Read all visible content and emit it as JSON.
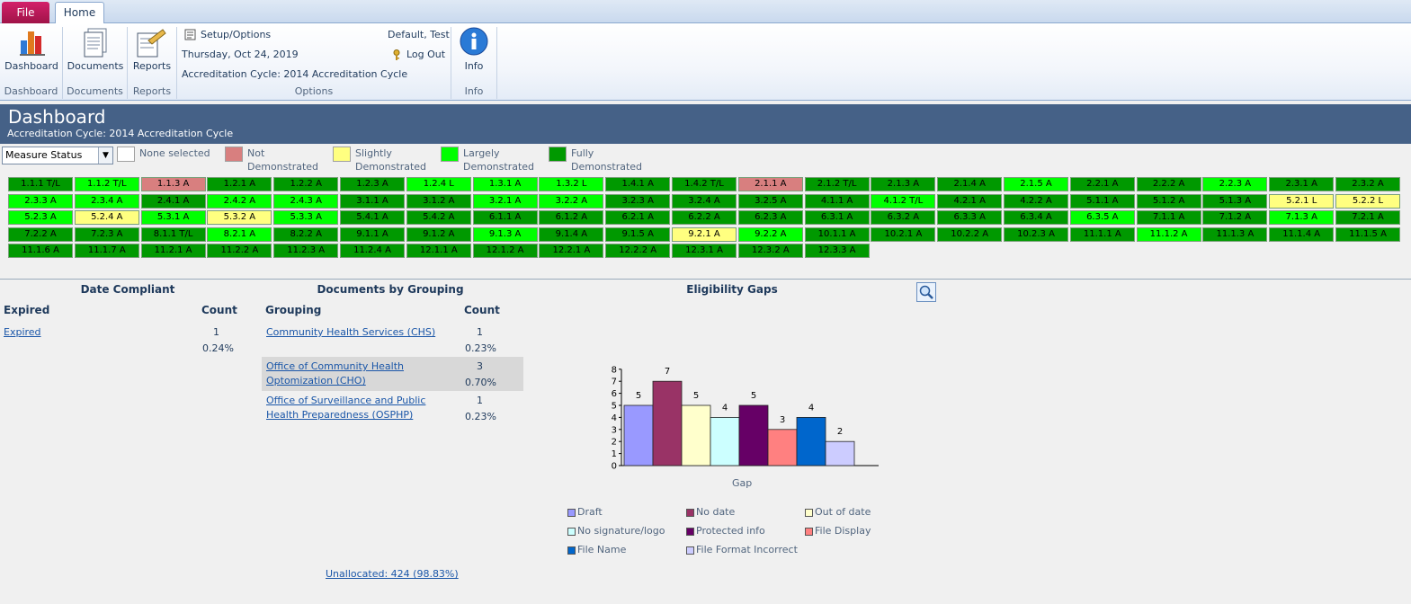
{
  "tabs": {
    "file": "File",
    "home": "Home"
  },
  "ribbon": {
    "dashboard": {
      "label": "Dashboard",
      "group": "Dashboard"
    },
    "documents": {
      "label": "Documents",
      "group": "Documents"
    },
    "reports": {
      "label": "Reports",
      "group": "Reports"
    },
    "options": {
      "setup": "Setup/Options",
      "date": "Thursday, Oct 24, 2019",
      "cycle": "Accreditation Cycle: 2014 Accreditation Cycle",
      "user": "Default, Test",
      "logout": "Log Out",
      "group": "Options"
    },
    "info": {
      "label": "Info",
      "group": "Info"
    }
  },
  "dashboard": {
    "title": "Dashboard",
    "subtitle": "Accreditation Cycle: 2014 Accreditation Cycle"
  },
  "filter": {
    "select_value": "Measure Status",
    "legend": [
      {
        "label_lines": [
          "None selected"
        ],
        "color": "#ffffff"
      },
      {
        "label_lines": [
          "Not",
          "Demonstrated"
        ],
        "color": "#d87f7f"
      },
      {
        "label_lines": [
          "Slightly",
          "Demonstrated"
        ],
        "color": "#ffff80"
      },
      {
        "label_lines": [
          "Largely",
          "Demonstrated"
        ],
        "color": "#00ff00"
      },
      {
        "label_lines": [
          "Fully",
          "Demonstrated"
        ],
        "color": "#009900"
      }
    ]
  },
  "status_colors": {
    "N": "#d87f7f",
    "S": "#ffff80",
    "L": "#00ff00",
    "F": "#009900"
  },
  "measures": [
    [
      [
        "1.1.1 T/L",
        "F"
      ],
      [
        "1.1.2 T/L",
        "L"
      ],
      [
        "1.1.3 A",
        "N"
      ],
      [
        "1.2.1 A",
        "F"
      ],
      [
        "1.2.2 A",
        "F"
      ],
      [
        "1.2.3 A",
        "F"
      ],
      [
        "1.2.4 L",
        "L"
      ],
      [
        "1.3.1 A",
        "L"
      ],
      [
        "1.3.2 L",
        "L"
      ],
      [
        "1.4.1 A",
        "F"
      ],
      [
        "1.4.2 T/L",
        "F"
      ],
      [
        "2.1.1 A",
        "N"
      ],
      [
        "2.1.2 T/L",
        "F"
      ],
      [
        "2.1.3 A",
        "F"
      ],
      [
        "2.1.4 A",
        "F"
      ],
      [
        "2.1.5 A",
        "L"
      ],
      [
        "2.2.1 A",
        "F"
      ],
      [
        "2.2.2 A",
        "F"
      ],
      [
        "2.2.3 A",
        "L"
      ],
      [
        "2.3.1 A",
        "F"
      ],
      [
        "2.3.2 A",
        "F"
      ]
    ],
    [
      [
        "2.3.3 A",
        "L"
      ],
      [
        "2.3.4 A",
        "L"
      ],
      [
        "2.4.1 A",
        "F"
      ],
      [
        "2.4.2 A",
        "L"
      ],
      [
        "2.4.3 A",
        "L"
      ],
      [
        "3.1.1 A",
        "F"
      ],
      [
        "3.1.2 A",
        "F"
      ],
      [
        "3.2.1 A",
        "L"
      ],
      [
        "3.2.2 A",
        "L"
      ],
      [
        "3.2.3 A",
        "F"
      ],
      [
        "3.2.4 A",
        "F"
      ],
      [
        "3.2.5 A",
        "F"
      ],
      [
        "4.1.1 A",
        "F"
      ],
      [
        "4.1.2 T/L",
        "L"
      ],
      [
        "4.2.1 A",
        "F"
      ],
      [
        "4.2.2 A",
        "F"
      ],
      [
        "5.1.1 A",
        "F"
      ],
      [
        "5.1.2 A",
        "F"
      ],
      [
        "5.1.3 A",
        "F"
      ],
      [
        "5.2.1 L",
        "S"
      ],
      [
        "5.2.2 L",
        "S"
      ]
    ],
    [
      [
        "5.2.3 A",
        "L"
      ],
      [
        "5.2.4 A",
        "S"
      ],
      [
        "5.3.1 A",
        "L"
      ],
      [
        "5.3.2 A",
        "S"
      ],
      [
        "5.3.3 A",
        "L"
      ],
      [
        "5.4.1 A",
        "F"
      ],
      [
        "5.4.2 A",
        "F"
      ],
      [
        "6.1.1 A",
        "F"
      ],
      [
        "6.1.2 A",
        "F"
      ],
      [
        "6.2.1 A",
        "F"
      ],
      [
        "6.2.2 A",
        "F"
      ],
      [
        "6.2.3 A",
        "F"
      ],
      [
        "6.3.1 A",
        "F"
      ],
      [
        "6.3.2 A",
        "F"
      ],
      [
        "6.3.3 A",
        "F"
      ],
      [
        "6.3.4 A",
        "F"
      ],
      [
        "6.3.5 A",
        "L"
      ],
      [
        "7.1.1 A",
        "F"
      ],
      [
        "7.1.2 A",
        "F"
      ],
      [
        "7.1.3 A",
        "L"
      ],
      [
        "7.2.1 A",
        "F"
      ]
    ],
    [
      [
        "7.2.2 A",
        "F"
      ],
      [
        "7.2.3 A",
        "F"
      ],
      [
        "8.1.1 T/L",
        "F"
      ],
      [
        "8.2.1 A",
        "L"
      ],
      [
        "8.2.2 A",
        "F"
      ],
      [
        "9.1.1 A",
        "F"
      ],
      [
        "9.1.2 A",
        "F"
      ],
      [
        "9.1.3 A",
        "L"
      ],
      [
        "9.1.4 A",
        "F"
      ],
      [
        "9.1.5 A",
        "F"
      ],
      [
        "9.2.1 A",
        "S"
      ],
      [
        "9.2.2 A",
        "L"
      ],
      [
        "10.1.1 A",
        "F"
      ],
      [
        "10.2.1 A",
        "F"
      ],
      [
        "10.2.2 A",
        "F"
      ],
      [
        "10.2.3 A",
        "F"
      ],
      [
        "11.1.1 A",
        "F"
      ],
      [
        "11.1.2 A",
        "L"
      ],
      [
        "11.1.3 A",
        "F"
      ],
      [
        "11.1.4 A",
        "F"
      ],
      [
        "11.1.5 A",
        "F"
      ]
    ],
    [
      [
        "11.1.6 A",
        "F"
      ],
      [
        "11.1.7 A",
        "F"
      ],
      [
        "11.2.1 A",
        "F"
      ],
      [
        "11.2.2 A",
        "F"
      ],
      [
        "11.2.3 A",
        "F"
      ],
      [
        "11.2.4 A",
        "F"
      ],
      [
        "12.1.1 A",
        "F"
      ],
      [
        "12.1.2 A",
        "F"
      ],
      [
        "12.2.1 A",
        "F"
      ],
      [
        "12.2.2 A",
        "F"
      ],
      [
        "12.3.1 A",
        "F"
      ],
      [
        "12.3.2 A",
        "F"
      ],
      [
        "12.3.3 A",
        "F"
      ]
    ]
  ],
  "date_compliant": {
    "title": "Date Compliant",
    "col1": "Expired",
    "col2": "Count",
    "row_label": "Expired",
    "count": "1",
    "pct": "0.24%"
  },
  "docs_by_grouping": {
    "title": "Documents by Grouping",
    "col1": "Grouping",
    "col2": "Count",
    "rows": [
      {
        "line1": "Community Health Services (CHS)",
        "line2": "",
        "count": "1",
        "pct": "0.23%"
      },
      {
        "line1": "Office of Community Health",
        "line2": "Optomization (CHO)",
        "count": "3",
        "pct": "0.70%"
      },
      {
        "line1": "Office of Surveillance and Public",
        "line2": "Health Preparedness (OSPHP)",
        "count": "1",
        "pct": "0.23%"
      }
    ],
    "unallocated": "Unallocated: 424 (98.83%)"
  },
  "chart_data": {
    "type": "bar",
    "title": "Eligibility Gaps",
    "xlabel": "Gap",
    "ylabel": "",
    "ylim": [
      0,
      8
    ],
    "yticks": [
      "0",
      "1",
      "2",
      "3",
      "4",
      "5",
      "6",
      "7",
      "8"
    ],
    "series": [
      {
        "name": "Draft",
        "value": 5,
        "label": "5",
        "color": "#9999ff"
      },
      {
        "name": "No date",
        "value": 7,
        "label": "7",
        "color": "#993366"
      },
      {
        "name": "Out of date",
        "value": 5,
        "label": "5",
        "color": "#ffffcc"
      },
      {
        "name": "No signature/logo",
        "value": 4,
        "label": "4",
        "color": "#ccffff"
      },
      {
        "name": "Protected info",
        "value": 5,
        "label": "5",
        "color": "#660066"
      },
      {
        "name": "File Display",
        "value": 3,
        "label": "3",
        "color": "#ff8080"
      },
      {
        "name": "File Name",
        "value": 4,
        "label": "4",
        "color": "#0066cc"
      },
      {
        "name": "File Format Incorrect",
        "value": 2,
        "label": "2",
        "color": "#ccccff"
      }
    ]
  }
}
